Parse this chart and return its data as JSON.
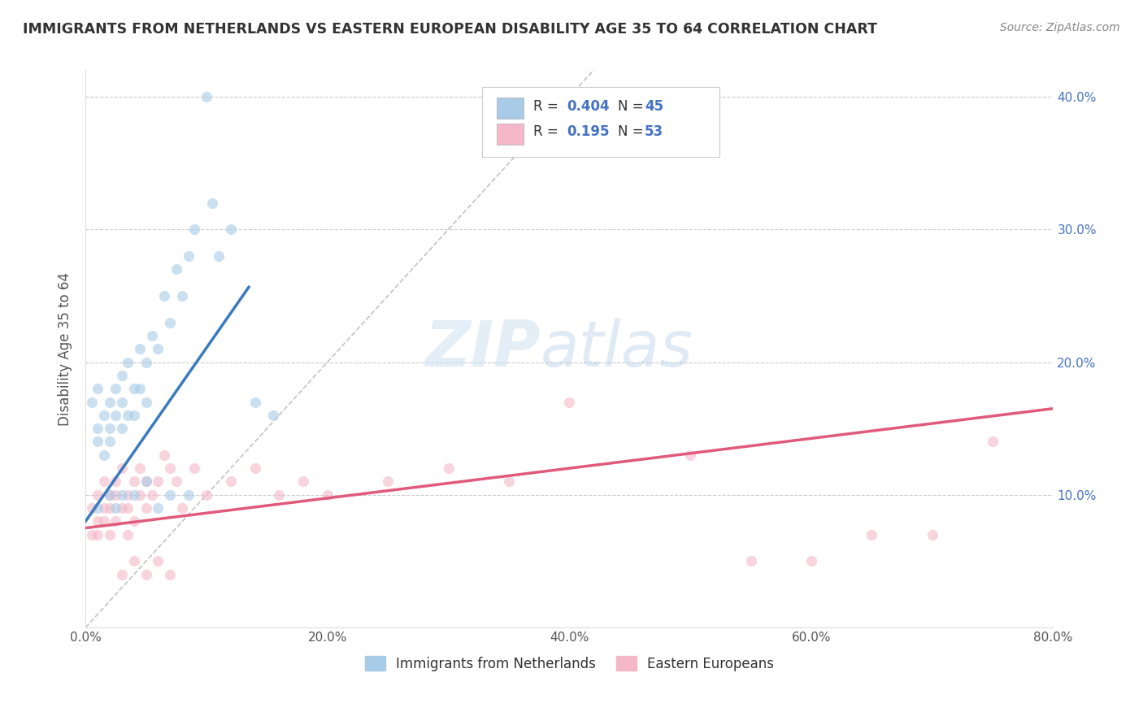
{
  "title": "IMMIGRANTS FROM NETHERLANDS VS EASTERN EUROPEAN DISABILITY AGE 35 TO 64 CORRELATION CHART",
  "source": "Source: ZipAtlas.com",
  "ylabel": "Disability Age 35 to 64",
  "xlim": [
    0.0,
    0.8
  ],
  "ylim": [
    0.0,
    0.42
  ],
  "legend_r1": "0.404",
  "legend_n1": "45",
  "legend_r2": "0.195",
  "legend_n2": "53",
  "legend_label1": "Immigrants from Netherlands",
  "legend_label2": "Eastern Europeans",
  "blue_color": "#a8cce8",
  "pink_color": "#f4b8c8",
  "blue_line_color": "#3a7abf",
  "pink_line_color": "#e05a7a",
  "scatter_alpha": 0.6,
  "scatter_size": 90,
  "watermark_zip": "ZIP",
  "watermark_atlas": "atlas",
  "netherlands_x": [
    0.005,
    0.01,
    0.01,
    0.01,
    0.015,
    0.015,
    0.02,
    0.02,
    0.02,
    0.025,
    0.025,
    0.03,
    0.03,
    0.03,
    0.035,
    0.035,
    0.04,
    0.04,
    0.045,
    0.045,
    0.05,
    0.05,
    0.055,
    0.06,
    0.065,
    0.07,
    0.075,
    0.08,
    0.085,
    0.09,
    0.01,
    0.02,
    0.025,
    0.03,
    0.04,
    0.05,
    0.06,
    0.07,
    0.085,
    0.1,
    0.105,
    0.11,
    0.12,
    0.14,
    0.155
  ],
  "netherlands_y": [
    0.17,
    0.15,
    0.14,
    0.18,
    0.16,
    0.13,
    0.17,
    0.15,
    0.14,
    0.18,
    0.16,
    0.19,
    0.17,
    0.15,
    0.2,
    0.16,
    0.18,
    0.16,
    0.21,
    0.18,
    0.2,
    0.17,
    0.22,
    0.21,
    0.25,
    0.23,
    0.27,
    0.25,
    0.28,
    0.3,
    0.09,
    0.1,
    0.09,
    0.1,
    0.1,
    0.11,
    0.09,
    0.1,
    0.1,
    0.4,
    0.32,
    0.28,
    0.3,
    0.17,
    0.16
  ],
  "eastern_x": [
    0.005,
    0.005,
    0.01,
    0.01,
    0.01,
    0.015,
    0.015,
    0.015,
    0.02,
    0.02,
    0.02,
    0.025,
    0.025,
    0.025,
    0.03,
    0.03,
    0.035,
    0.035,
    0.035,
    0.04,
    0.04,
    0.045,
    0.045,
    0.05,
    0.05,
    0.055,
    0.06,
    0.065,
    0.07,
    0.075,
    0.08,
    0.09,
    0.1,
    0.12,
    0.14,
    0.16,
    0.18,
    0.2,
    0.25,
    0.3,
    0.35,
    0.4,
    0.5,
    0.55,
    0.6,
    0.65,
    0.7,
    0.75,
    0.03,
    0.04,
    0.05,
    0.06,
    0.07
  ],
  "eastern_y": [
    0.09,
    0.07,
    0.1,
    0.08,
    0.07,
    0.11,
    0.09,
    0.08,
    0.1,
    0.09,
    0.07,
    0.11,
    0.1,
    0.08,
    0.12,
    0.09,
    0.1,
    0.09,
    0.07,
    0.11,
    0.08,
    0.12,
    0.1,
    0.11,
    0.09,
    0.1,
    0.11,
    0.13,
    0.12,
    0.11,
    0.09,
    0.12,
    0.1,
    0.11,
    0.12,
    0.1,
    0.11,
    0.1,
    0.11,
    0.12,
    0.11,
    0.17,
    0.13,
    0.05,
    0.05,
    0.07,
    0.07,
    0.14,
    0.04,
    0.05,
    0.04,
    0.05,
    0.04
  ],
  "ytick_positions": [
    0.1,
    0.2,
    0.3,
    0.4
  ],
  "ytick_labels": [
    "10.0%",
    "20.0%",
    "30.0%",
    "40.0%"
  ],
  "xtick_positions": [
    0.0,
    0.2,
    0.4,
    0.6,
    0.8
  ],
  "xtick_labels": [
    "0.0%",
    "20.0%",
    "40.0%",
    "60.0%",
    "80.0%"
  ]
}
